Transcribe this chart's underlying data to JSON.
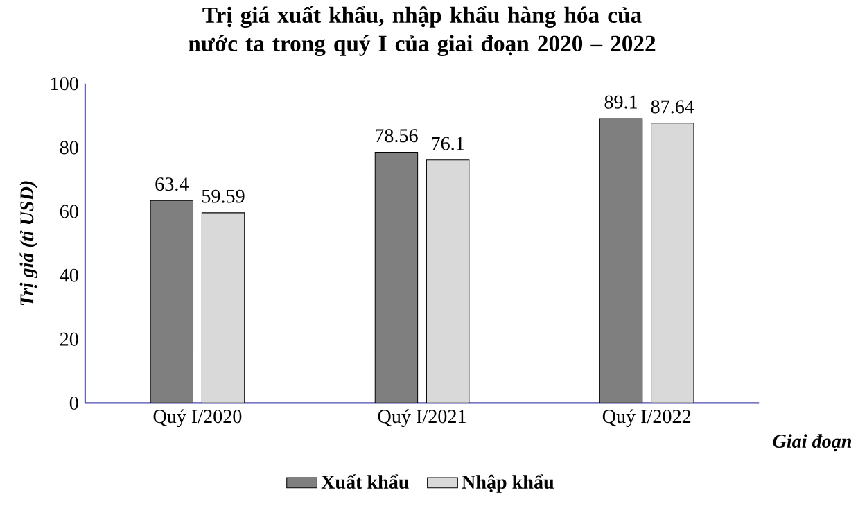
{
  "chart_data": {
    "type": "bar",
    "title": "Trị giá xuất khẩu, nhập khẩu hàng hóa của nước ta trong quý I của giai đoạn 2020 – 2022",
    "xlabel": "Giai đoạn",
    "ylabel": "Trị giá (tỉ USD)",
    "categories": [
      "Quý I/2020",
      "Quý I/2021",
      "Quý I/2022"
    ],
    "series": [
      {
        "name": "Xuất khẩu",
        "color": "#7f7f7f",
        "values": [
          63.4,
          78.56,
          89.1
        ]
      },
      {
        "name": "Nhập khẩu",
        "color": "#d9d9d9",
        "values": [
          59.59,
          76.1,
          87.64
        ]
      }
    ],
    "ylim": [
      0,
      100
    ],
    "yticks": [
      0,
      20,
      40,
      60,
      80,
      100
    ],
    "data_labels": true,
    "legend": "bottom"
  }
}
